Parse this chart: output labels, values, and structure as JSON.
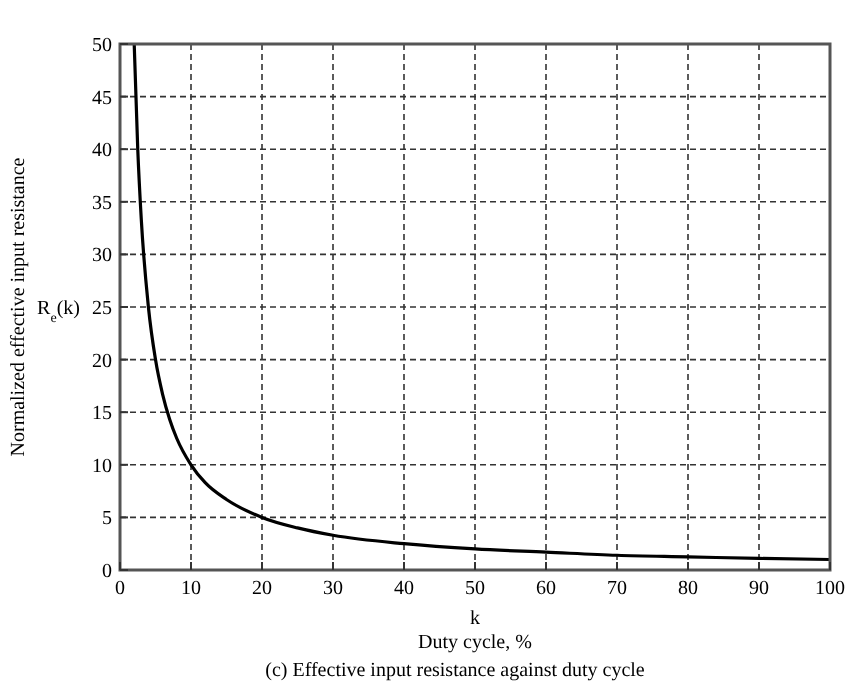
{
  "chart_data": {
    "type": "line",
    "xlabel": "k\nDuty cycle, %",
    "ylabel": "Normalized effective input resistance",
    "annotations": [
      "R$_{e}$(k)",
      "(c) Effective input resistance against duty cycle"
    ],
    "x": [
      2,
      2.5,
      3,
      4,
      5,
      6,
      7,
      8,
      10,
      12,
      15,
      20,
      25,
      30,
      40,
      50,
      60,
      70,
      80,
      90,
      100
    ],
    "series": [
      {
        "color": "#000000",
        "values": [
          50,
          40,
          33.3,
          25,
          20,
          16.7,
          14.3,
          12.5,
          10,
          8.3,
          6.7,
          5,
          4,
          3.3,
          2.5,
          2,
          1.7,
          1.4,
          1.25,
          1.1,
          1
        ]
      }
    ],
    "xlim": [
      0,
      100
    ],
    "ylim": [
      0,
      50
    ],
    "xticks": [
      0,
      10,
      20,
      30,
      40,
      50,
      60,
      70,
      80,
      90,
      100
    ],
    "yticks": [
      0,
      5,
      10,
      15,
      20,
      25,
      30,
      35,
      40,
      45,
      50
    ],
    "grid": true,
    "line_style": "solid",
    "marker": "none"
  }
}
